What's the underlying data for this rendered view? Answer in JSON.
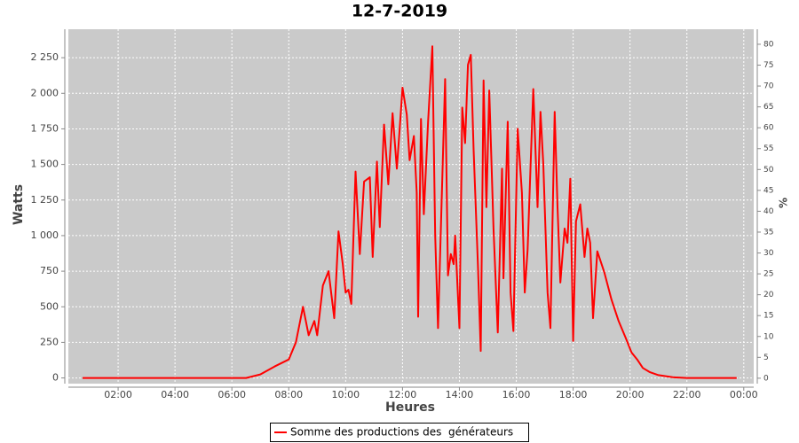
{
  "chart_data": {
    "type": "line",
    "title": "12-7-2019",
    "x_label": "Heures",
    "y_label": "Watts",
    "y2_label": "%",
    "x": [
      0.75,
      3,
      6,
      6.5,
      7.0,
      7.5,
      8.0,
      8.25,
      8.5,
      8.7,
      8.9,
      9.0,
      9.2,
      9.4,
      9.6,
      9.75,
      9.9,
      10.0,
      10.1,
      10.2,
      10.35,
      10.5,
      10.65,
      10.85,
      10.95,
      11.1,
      11.2,
      11.35,
      11.5,
      11.65,
      11.8,
      11.9,
      12.0,
      12.15,
      12.25,
      12.4,
      12.5,
      12.55,
      12.65,
      12.75,
      12.9,
      13.05,
      13.15,
      13.25,
      13.4,
      13.5,
      13.6,
      13.7,
      13.8,
      13.85,
      14.0,
      14.1,
      14.2,
      14.3,
      14.4,
      14.5,
      14.65,
      14.75,
      14.85,
      14.95,
      15.05,
      15.2,
      15.35,
      15.5,
      15.55,
      15.7,
      15.8,
      15.9,
      16.05,
      16.2,
      16.3,
      16.4,
      16.6,
      16.75,
      16.85,
      16.95,
      17.1,
      17.2,
      17.35,
      17.45,
      17.55,
      17.7,
      17.8,
      17.9,
      18.0,
      18.1,
      18.25,
      18.4,
      18.5,
      18.6,
      18.7,
      18.85,
      19.1,
      19.35,
      19.6,
      19.85,
      20.05,
      20.25,
      20.45,
      20.7,
      21.0,
      21.5,
      22.0,
      23.75
    ],
    "series": [
      {
        "name": "Somme des productions des  générateurs",
        "color": "#ff0000",
        "values": [
          0,
          0,
          0,
          0,
          25,
          80,
          130,
          250,
          500,
          300,
          400,
          300,
          650,
          750,
          420,
          1030,
          800,
          600,
          620,
          520,
          1450,
          870,
          1380,
          1410,
          850,
          1520,
          1060,
          1780,
          1360,
          1860,
          1470,
          1750,
          2040,
          1850,
          1530,
          1700,
          1300,
          430,
          1820,
          1150,
          1800,
          2330,
          1000,
          350,
          1400,
          2100,
          720,
          870,
          800,
          1000,
          350,
          1900,
          1650,
          2200,
          2270,
          1600,
          800,
          190,
          2090,
          1200,
          2020,
          1050,
          320,
          1470,
          700,
          1800,
          600,
          330,
          1750,
          1300,
          600,
          900,
          2030,
          1200,
          1870,
          1500,
          600,
          350,
          1870,
          1200,
          670,
          1050,
          950,
          1400,
          260,
          1100,
          1220,
          850,
          1050,
          950,
          420,
          890,
          740,
          550,
          400,
          280,
          180,
          130,
          70,
          40,
          20,
          5,
          0,
          0
        ]
      }
    ],
    "xlim": [
      0.25,
      24.35
    ],
    "xticks": [
      {
        "value": 2,
        "label": "02:00"
      },
      {
        "value": 4,
        "label": "04:00"
      },
      {
        "value": 6,
        "label": "06:00"
      },
      {
        "value": 8,
        "label": "08:00"
      },
      {
        "value": 10,
        "label": "10:00"
      },
      {
        "value": 12,
        "label": "12:00"
      },
      {
        "value": 14,
        "label": "14:00"
      },
      {
        "value": 16,
        "label": "16:00"
      },
      {
        "value": 18,
        "label": "18:00"
      },
      {
        "value": 20,
        "label": "20:00"
      },
      {
        "value": 22,
        "label": "22:00"
      },
      {
        "value": 24,
        "label": "00:00"
      }
    ],
    "ylim": [
      -40,
      2450
    ],
    "yticks": [
      0,
      250,
      500,
      750,
      {
        "value": 1000,
        "label": "1 000"
      },
      {
        "value": 1250,
        "label": "1 250"
      },
      {
        "value": 1500,
        "label": "1 500"
      },
      {
        "value": 1750,
        "label": "1 750"
      },
      {
        "value": 2000,
        "label": "2 000"
      },
      {
        "value": 2250,
        "label": "2 250"
      }
    ],
    "y2lim": [
      -1.3,
      83.6
    ],
    "y2ticks": [
      0,
      5,
      10,
      15,
      20,
      25,
      30,
      35,
      40,
      45,
      50,
      55,
      60,
      65,
      70,
      75,
      80
    ],
    "grid": true
  }
}
